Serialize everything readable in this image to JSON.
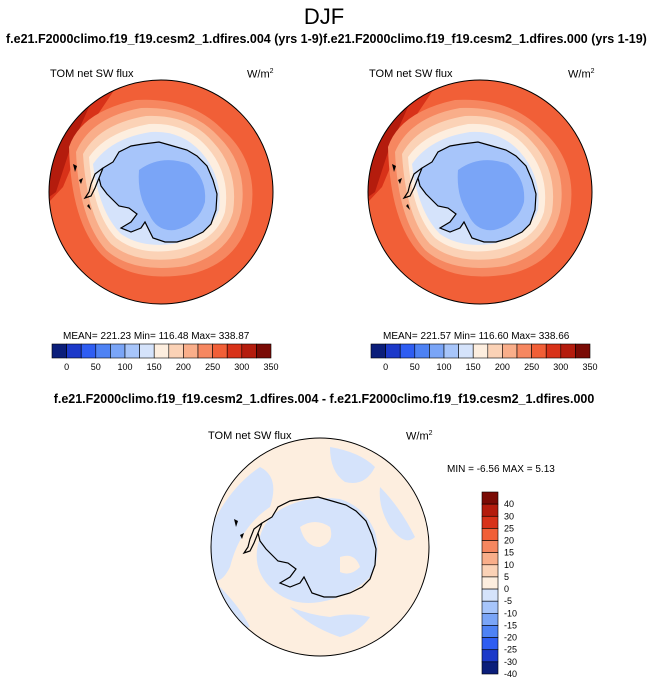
{
  "figure": {
    "season": "DJF",
    "left_case": "f.e21.F2000climo.f19_f19.cesm2_1.dfires.004 (yrs 1-9)",
    "right_case": "f.e21.F2000climo.f19_f19.cesm2_1.dfires.000 (yrs 1-19)",
    "diff_title": "f.e21.F2000climo.f19_f19.cesm2_1.dfires.004 - f.e21.F2000climo.f19_f19.cesm2_1.dfires.000"
  },
  "panels": [
    {
      "variable": "TOM net SW flux",
      "units": "W/m",
      "units_exp": "2",
      "stats": "MEAN= 221.23  Min= 116.48  Max= 338.87"
    },
    {
      "variable": "TOM net SW flux",
      "units": "W/m",
      "units_exp": "2",
      "stats": "MEAN= 221.57  Min= 116.60  Max= 338.66"
    },
    {
      "variable": "TOM net SW flux",
      "units": "W/m",
      "units_exp": "2",
      "stats": "MIN =  -6.56 MAX =  5.13"
    }
  ],
  "colorbar_abs": {
    "colors": [
      "#0b1e7a",
      "#1c39c9",
      "#2e5df2",
      "#4e82f4",
      "#7aa5f7",
      "#a7c5fa",
      "#d5e3fb",
      "#fdeedf",
      "#fbd2b6",
      "#f9ae8a",
      "#f68760",
      "#f15f37",
      "#d83219",
      "#b41c0d",
      "#7a0b05"
    ],
    "tick_labels": [
      "0",
      "50",
      "100",
      "150",
      "200",
      "250",
      "300",
      "350"
    ]
  },
  "colorbar_diff": {
    "colors": [
      "#0b1e7a",
      "#1c39c9",
      "#2e5df2",
      "#4e82f4",
      "#7aa5f7",
      "#a7c5fa",
      "#d5e3fb",
      "#fdeedf",
      "#fbd2b6",
      "#f9ae8a",
      "#f68760",
      "#f15f37",
      "#d83219",
      "#b41c0d",
      "#7a0b05"
    ],
    "tick_labels": [
      "40",
      "30",
      "25",
      "20",
      "15",
      "10",
      "5",
      "0",
      "-5",
      "-10",
      "-15",
      "-20",
      "-25",
      "-30",
      "-40"
    ]
  }
}
